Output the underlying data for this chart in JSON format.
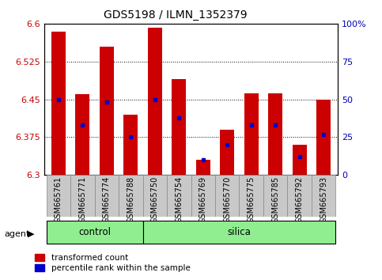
{
  "title": "GDS5198 / ILMN_1352379",
  "samples": [
    "GSM665761",
    "GSM665771",
    "GSM665774",
    "GSM665788",
    "GSM665750",
    "GSM665754",
    "GSM665769",
    "GSM665770",
    "GSM665775",
    "GSM665785",
    "GSM665792",
    "GSM665793"
  ],
  "groups": [
    "control",
    "control",
    "control",
    "control",
    "silica",
    "silica",
    "silica",
    "silica",
    "silica",
    "silica",
    "silica",
    "silica"
  ],
  "transformed_count": [
    6.585,
    6.46,
    6.555,
    6.42,
    6.592,
    6.49,
    6.33,
    6.39,
    6.462,
    6.462,
    6.36,
    6.45
  ],
  "percentile_rank": [
    50,
    33,
    48,
    25,
    50,
    38,
    10,
    20,
    33,
    33,
    12,
    27
  ],
  "ylim_left": [
    6.3,
    6.6
  ],
  "ylim_right": [
    0,
    100
  ],
  "yticks_left": [
    6.3,
    6.375,
    6.45,
    6.525,
    6.6
  ],
  "yticks_right": [
    0,
    25,
    50,
    75,
    100
  ],
  "bar_color": "#cc0000",
  "percentile_color": "#0000cc",
  "group_color": "#90ee90",
  "xtick_bg_color": "#c8c8c8",
  "ylabel_left_color": "#cc0000",
  "ylabel_right_color": "#0000bb",
  "legend_items": [
    "transformed count",
    "percentile rank within the sample"
  ],
  "bar_width": 0.6,
  "agent_label": "agent",
  "group_labels": [
    "control",
    "silica"
  ],
  "control_indices": [
    0,
    3
  ],
  "silica_indices": [
    4,
    11
  ]
}
